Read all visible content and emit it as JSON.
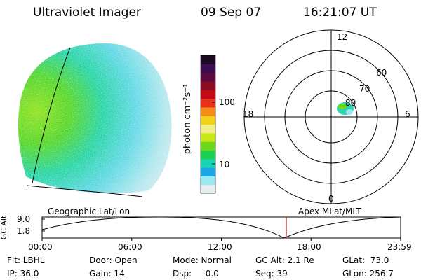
{
  "header": {
    "instrument": "Ultraviolet Imager",
    "date": "09 Sep 07",
    "time": "16:21:07 UT"
  },
  "colorbar": {
    "unit_label": "photon cm⁻²s⁻¹",
    "ticks": [
      "100",
      "10"
    ],
    "colors": [
      "#1a0a24",
      "#3c0c52",
      "#5a0c3e",
      "#8c0c22",
      "#c40a16",
      "#e8321a",
      "#f58c1a",
      "#f5d21a",
      "#f2ee8a",
      "#c8e81a",
      "#6ed81a",
      "#1ad250",
      "#1ad2b4",
      "#1aa6e8",
      "#9ae8f0",
      "#e6eef0"
    ]
  },
  "polar": {
    "clock_labels": [
      "12",
      "18",
      "6",
      "0"
    ],
    "lat_labels": [
      "60",
      "70",
      "80"
    ]
  },
  "timeline": {
    "axis_title": "GC Alt",
    "yticks": [
      "9.0",
      "1.8"
    ],
    "left_label": "Geographic Lat/Lon",
    "right_label": "Apex MLat/MLT",
    "xticks": [
      "00:00",
      "06:00",
      "12:00",
      "18:00",
      "23:59"
    ],
    "current_time_hours": 16.35
  },
  "status": {
    "filter": "Flt: LBHL",
    "ip": "IP: 36.0",
    "door": "Door: Open",
    "gain": "Gain: 14",
    "mode": "Mode: Normal",
    "dsp": "Dsp:    -0.0",
    "gc_alt": "GC Alt: 2.1 Re",
    "seq": "Seq: 39",
    "glat": "GLat:  73.0",
    "glon": "GLon: 256.7"
  }
}
